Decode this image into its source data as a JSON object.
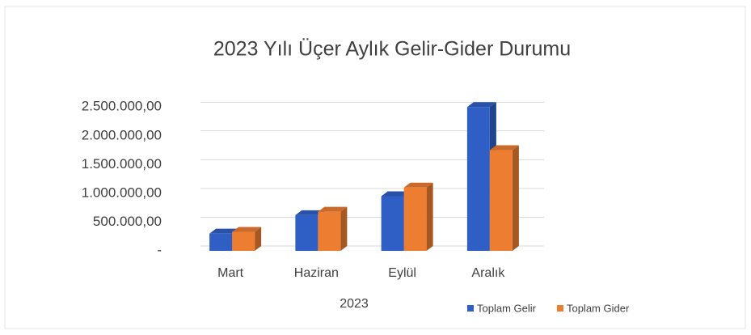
{
  "chart_data": {
    "type": "bar3d",
    "title": "2023 Yılı Üçer Aylık Gelir-Gider Durumu",
    "x_label": "2023",
    "categories": [
      "Mart",
      "Haziran",
      "Eylül",
      "Aralık"
    ],
    "series": [
      {
        "name": "Toplam Gelir",
        "color": "#2f5fc4",
        "values": [
          300000,
          620000,
          950000,
          2500000
        ]
      },
      {
        "name": "Toplam Gider",
        "color": "#ed7d31",
        "values": [
          330000,
          680000,
          1100000,
          1750000
        ]
      }
    ],
    "ylim": [
      0,
      2700000
    ],
    "yticks": [
      {
        "value": 0,
        "label": "-"
      },
      {
        "value": 500000,
        "label": "500.000,00"
      },
      {
        "value": 1000000,
        "label": "1.000.000,00"
      },
      {
        "value": 1500000,
        "label": "1.500.000,00"
      },
      {
        "value": 2000000,
        "label": "2.000.000,00"
      },
      {
        "value": 2500000,
        "label": "2.500.000,00"
      }
    ],
    "grid": true,
    "legend": "bottom-right"
  }
}
